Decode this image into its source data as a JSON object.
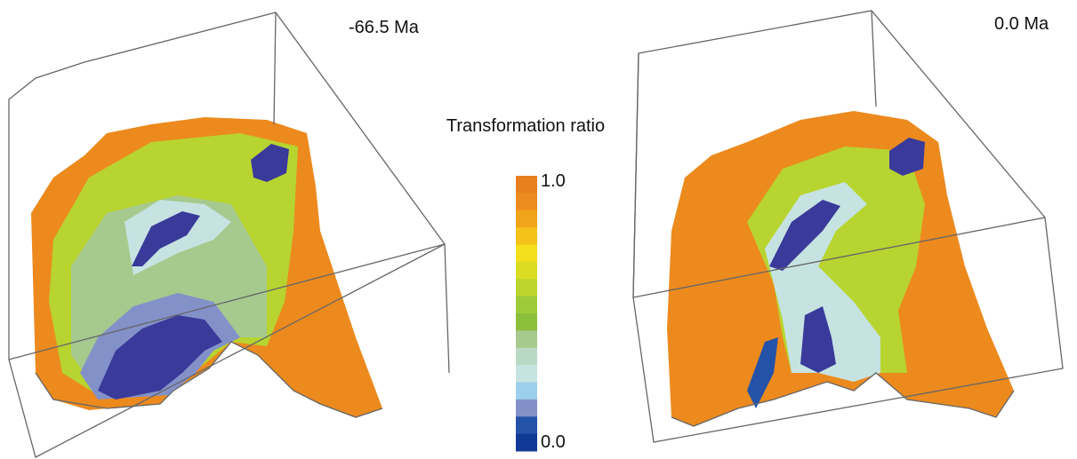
{
  "left_panel": {
    "label": "-66.5 Ma"
  },
  "right_panel": {
    "label": "0.0 Ma"
  },
  "colorbar": {
    "title": "Transformation ratio",
    "ticks": [
      {
        "value": 1,
        "label": "1.0"
      },
      {
        "value": 0,
        "label": "0.0"
      }
    ],
    "range": [
      0,
      1
    ],
    "colors": [
      "#e9801f",
      "#ec8c1e",
      "#f0a41a",
      "#f5c21a",
      "#f3df1e",
      "#d9dc22",
      "#bcd42e",
      "#9ecb3a",
      "#8cbf3a",
      "#a6c98e",
      "#b9d9c4",
      "#c6e3e2",
      "#9ccfec",
      "#8391c9",
      "#2452a8",
      "#103a96"
    ]
  }
}
